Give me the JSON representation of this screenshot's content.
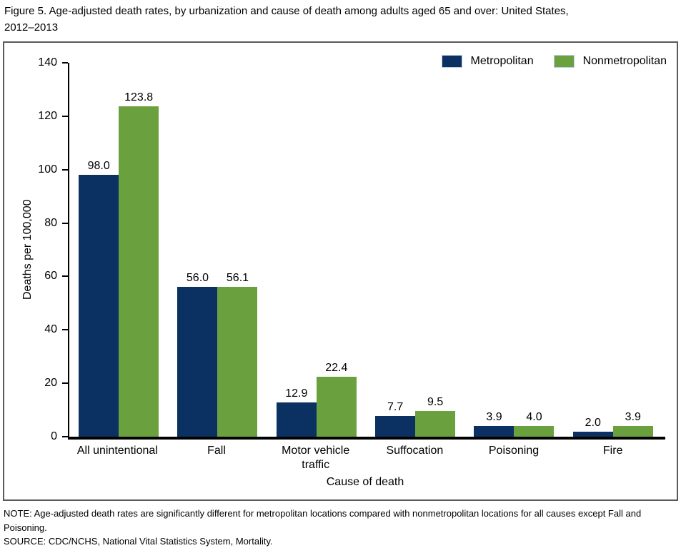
{
  "figure": {
    "note": "NOTE: Age-adjusted death rates are significantly different for metropolitan locations compared with nonmetropolitan locations for all causes except Fall and Poisoning.",
    "source": "SOURCE: CDC/NCHS, National Vital Statistics System, Mortality."
  },
  "colors": {
    "metropolitan": "#0a3161",
    "nonmetropolitan": "#6ba03f",
    "axis": "#000000",
    "box_border": "#595959"
  },
  "chart_data": {
    "type": "bar",
    "title": "Figure 5. Age-adjusted death rates, by urbanization and cause of death among adults aged 65 and over: United States,\n2012–2013",
    "categories": [
      "All unintentional",
      "Fall",
      "Motor vehicle traffic",
      "Suffocation",
      "Poisoning",
      "Fire"
    ],
    "series": [
      {
        "name": "Metropolitan",
        "color": "#0a3161",
        "values": [
          98.0,
          56.0,
          12.9,
          7.7,
          3.9,
          2.0
        ]
      },
      {
        "name": "Nonmetropolitan",
        "color": "#6ba03f",
        "values": [
          123.8,
          56.1,
          22.4,
          9.5,
          4.0,
          3.9
        ]
      }
    ],
    "xlabel": "Cause of death",
    "ylabel": "Deaths per 100,000",
    "ylim": [
      0,
      140
    ],
    "yticks": [
      0,
      20,
      40,
      60,
      80,
      100,
      120,
      140
    ],
    "grid": false,
    "legend_position": "top-right",
    "value_label_decimals": 1
  }
}
